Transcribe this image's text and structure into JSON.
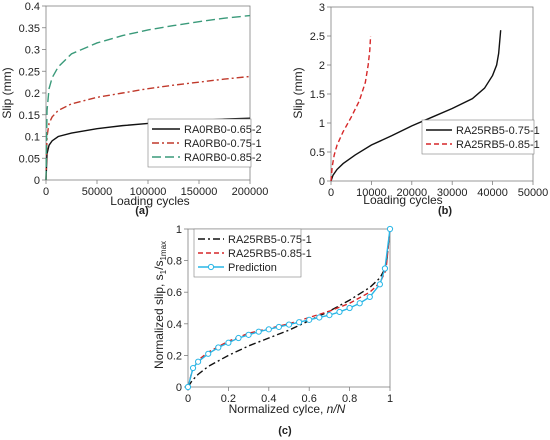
{
  "chart_data": [
    {
      "panel_label": "(a)",
      "type": "line",
      "xlabel": "Loading cycles",
      "ylabel": "Slip (mm)",
      "xlim": [
        0,
        200000
      ],
      "ylim": [
        0,
        0.4
      ],
      "x_ticks": [
        "0",
        "50000",
        "100000",
        "150000",
        "200000"
      ],
      "y_ticks": [
        "0",
        "0.05",
        "0.1",
        "0.15",
        "0.2",
        "0.25",
        "0.3",
        "0.35",
        "0.4"
      ],
      "legend_position": "bottom-right",
      "series": [
        {
          "name": "RA0RB0-0.65-2",
          "color": "#111111",
          "dash": "solid",
          "x": [
            0,
            1000,
            3000,
            6000,
            12000,
            25000,
            50000,
            75000,
            100000,
            125000,
            150000,
            175000,
            200000
          ],
          "y": [
            0,
            0.06,
            0.08,
            0.09,
            0.1,
            0.108,
            0.118,
            0.125,
            0.13,
            0.134,
            0.137,
            0.14,
            0.142
          ]
        },
        {
          "name": "RA0RB0-0.75-1",
          "color": "#c0392b",
          "dash": "dashdot",
          "x": [
            0,
            1000,
            3000,
            6000,
            12000,
            25000,
            50000,
            75000,
            100000,
            125000,
            150000,
            175000,
            200000
          ],
          "y": [
            0,
            0.1,
            0.13,
            0.145,
            0.16,
            0.175,
            0.19,
            0.2,
            0.21,
            0.218,
            0.225,
            0.232,
            0.238
          ]
        },
        {
          "name": "RA0RB0-0.85-2",
          "color": "#3a9a7a",
          "dash": "longdash",
          "x": [
            0,
            1000,
            3000,
            6000,
            12000,
            25000,
            50000,
            75000,
            100000,
            125000,
            150000,
            175000,
            200000
          ],
          "y": [
            0,
            0.16,
            0.21,
            0.235,
            0.26,
            0.29,
            0.315,
            0.332,
            0.345,
            0.355,
            0.364,
            0.372,
            0.378
          ]
        }
      ]
    },
    {
      "panel_label": "(b)",
      "type": "line",
      "xlabel": "Loading cycles",
      "ylabel": "Slip (mm)",
      "xlim": [
        0,
        50000
      ],
      "ylim": [
        0,
        3
      ],
      "x_ticks": [
        "0",
        "10000",
        "20000",
        "30000",
        "40000",
        "50000"
      ],
      "y_ticks": [
        "0",
        "0.5",
        "1",
        "1.5",
        "2",
        "2.5",
        "3"
      ],
      "legend_position": "bottom-right",
      "series": [
        {
          "name": "RA25RB5-0.75-1",
          "color": "#111111",
          "dash": "solid",
          "x": [
            0,
            500,
            1500,
            3000,
            6000,
            10000,
            15000,
            20000,
            25000,
            30000,
            35000,
            38000,
            40000,
            41000,
            41500,
            42000
          ],
          "y": [
            0,
            0.1,
            0.2,
            0.3,
            0.45,
            0.62,
            0.78,
            0.95,
            1.1,
            1.25,
            1.42,
            1.6,
            1.82,
            2.0,
            2.2,
            2.6
          ]
        },
        {
          "name": "RA25RB5-0.85-1",
          "color": "#d62728",
          "dash": "dashed",
          "x": [
            0,
            300,
            800,
            1500,
            3000,
            5000,
            7000,
            8500,
            9200,
            9600,
            9800
          ],
          "y": [
            0,
            0.25,
            0.45,
            0.62,
            0.85,
            1.1,
            1.38,
            1.7,
            2.0,
            2.25,
            2.5
          ]
        }
      ]
    },
    {
      "panel_label": "(c)",
      "type": "line",
      "xlabel": "Normalized cylce, n/N",
      "ylabel": "Normalized slip, s1/s1max",
      "xlim": [
        0,
        1
      ],
      "ylim": [
        0,
        1
      ],
      "x_ticks": [
        "0",
        "0.2",
        "0.4",
        "0.6",
        "0.8",
        "1"
      ],
      "y_ticks": [
        "0",
        "0.2",
        "0.4",
        "0.6",
        "0.8",
        "1"
      ],
      "legend_position": "top-left",
      "series": [
        {
          "name": "RA25RB5-0.75-1",
          "color": "#111111",
          "dash": "dashdot",
          "x": [
            0,
            0.02,
            0.05,
            0.1,
            0.2,
            0.3,
            0.4,
            0.5,
            0.6,
            0.7,
            0.8,
            0.9,
            0.95,
            0.98,
            1
          ],
          "y": [
            0,
            0.04,
            0.08,
            0.13,
            0.2,
            0.26,
            0.31,
            0.36,
            0.42,
            0.48,
            0.55,
            0.63,
            0.69,
            0.76,
            1
          ]
        },
        {
          "name": "RA25RB5-0.85-1",
          "color": "#d62728",
          "dash": "dashed",
          "x": [
            0,
            0.02,
            0.05,
            0.1,
            0.2,
            0.3,
            0.4,
            0.5,
            0.6,
            0.7,
            0.8,
            0.9,
            0.95,
            0.98,
            1
          ],
          "y": [
            0,
            0.1,
            0.17,
            0.22,
            0.29,
            0.34,
            0.37,
            0.4,
            0.44,
            0.48,
            0.53,
            0.6,
            0.66,
            0.74,
            1
          ]
        },
        {
          "name": "Prediction",
          "color": "#29b6e6",
          "dash": "solid",
          "marker": "circle",
          "x": [
            0,
            0.025,
            0.05,
            0.1,
            0.15,
            0.2,
            0.25,
            0.3,
            0.35,
            0.4,
            0.45,
            0.5,
            0.55,
            0.6,
            0.65,
            0.7,
            0.75,
            0.8,
            0.85,
            0.9,
            0.95,
            0.975,
            1
          ],
          "y": [
            0,
            0.12,
            0.16,
            0.21,
            0.25,
            0.28,
            0.31,
            0.33,
            0.35,
            0.365,
            0.38,
            0.395,
            0.41,
            0.425,
            0.44,
            0.455,
            0.475,
            0.5,
            0.53,
            0.57,
            0.65,
            0.75,
            1
          ]
        }
      ]
    }
  ]
}
